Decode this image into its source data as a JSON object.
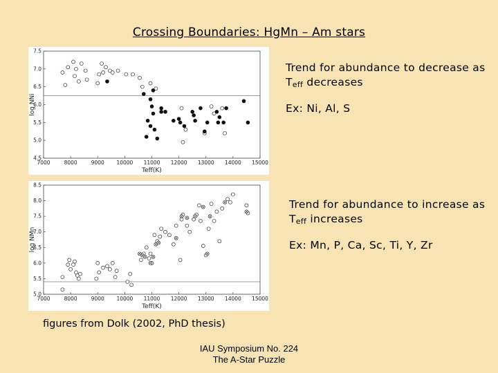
{
  "slide": {
    "title": "Crossing Boundaries:  HgMn – Am stars",
    "notes": [
      {
        "pre": "Trend for abundance to decrease as T",
        "sub": "eff",
        "post": " decreases",
        "example": "Ex: Ni, Al, S"
      },
      {
        "pre": "Trend for abundance to increase as T",
        "sub": "eff",
        "post": " increases",
        "example": "Ex: Mn, P, Ca, Sc, Ti, Y, Zr"
      }
    ],
    "caption": "figures from Dolk (2002, PhD thesis)",
    "footer_line1": "IAU Symposium No. 224",
    "footer_line2": "The A-Star Puzzle"
  },
  "chart_data": [
    {
      "type": "scatter",
      "xlabel": "Teff(K)",
      "ylabel": "log NNi",
      "xlim": [
        7000,
        15000
      ],
      "ylim": [
        4.5,
        7.5
      ],
      "xticks": [
        "7000",
        "8000",
        "9000",
        "10000",
        "11000",
        "12000",
        "13000",
        "14000",
        "15000"
      ],
      "yticks": [
        "4.5",
        "5.0",
        "5.5",
        "6.0",
        "6.5",
        "7.0",
        "7.5"
      ],
      "reference_line": 6.25,
      "series": [
        {
          "marker": "open",
          "points": [
            [
              7700,
              6.9
            ],
            [
              7800,
              6.55
            ],
            [
              7900,
              7.05
            ],
            [
              8100,
              7.2
            ],
            [
              8150,
              6.8
            ],
            [
              8200,
              7.0
            ],
            [
              8300,
              6.65
            ],
            [
              8400,
              7.15
            ],
            [
              8550,
              6.95
            ],
            [
              8600,
              6.7
            ],
            [
              9000,
              6.6
            ],
            [
              9050,
              6.85
            ],
            [
              9150,
              7.15
            ],
            [
              9200,
              6.9
            ],
            [
              9300,
              7.05
            ],
            [
              9450,
              6.95
            ],
            [
              9550,
              6.9
            ],
            [
              9750,
              6.95
            ],
            [
              10050,
              6.85
            ],
            [
              10300,
              6.85
            ],
            [
              10550,
              6.75
            ],
            [
              10650,
              6.5
            ],
            [
              10950,
              6.6
            ],
            [
              11150,
              6.45
            ],
            [
              12100,
              5.9
            ],
            [
              12250,
              5.3
            ],
            [
              12150,
              4.95
            ],
            [
              12950,
              5.2
            ],
            [
              13200,
              5.95
            ],
            [
              13300,
              5.75
            ],
            [
              13600,
              5.9
            ],
            [
              13700,
              5.2
            ]
          ]
        },
        {
          "marker": "filled",
          "points": [
            [
              9350,
              6.65
            ],
            [
              10700,
              6.3
            ],
            [
              11050,
              6.4
            ],
            [
              10950,
              6.15
            ],
            [
              11000,
              5.95
            ],
            [
              11050,
              5.75
            ],
            [
              11100,
              5.3
            ],
            [
              10850,
              5.55
            ],
            [
              10950,
              5.4
            ],
            [
              10800,
              5.1
            ],
            [
              11200,
              5.05
            ],
            [
              11350,
              5.8
            ],
            [
              11350,
              5.9
            ],
            [
              11500,
              5.8
            ],
            [
              11800,
              5.55
            ],
            [
              12000,
              5.6
            ],
            [
              12050,
              5.5
            ],
            [
              12200,
              5.4
            ],
            [
              12500,
              5.8
            ],
            [
              12550,
              5.7
            ],
            [
              12600,
              5.55
            ],
            [
              12800,
              5.9
            ],
            [
              12950,
              5.25
            ],
            [
              13050,
              5.5
            ],
            [
              13400,
              5.8
            ],
            [
              13450,
              5.5
            ],
            [
              13500,
              5.65
            ],
            [
              13650,
              5.5
            ],
            [
              13750,
              5.9
            ],
            [
              14400,
              6.1
            ],
            [
              14550,
              5.5
            ]
          ]
        }
      ]
    },
    {
      "type": "scatter",
      "xlabel": "Teff(K)",
      "ylabel": "log NMn",
      "xlim": [
        7000,
        15000
      ],
      "ylim": [
        5.0,
        8.5
      ],
      "xticks": [
        "7000",
        "8000",
        "9000",
        "10000",
        "11000",
        "12000",
        "13000",
        "14000",
        "15000"
      ],
      "yticks": [
        "5.0",
        "5.5",
        "6.0",
        "6.5",
        "7.0",
        "7.5",
        "8.0",
        "8.5"
      ],
      "reference_line": 5.4,
      "series": [
        {
          "marker": "open",
          "points": [
            [
              7700,
              5.15
            ],
            [
              7700,
              5.55
            ],
            [
              7900,
              5.95
            ],
            [
              7950,
              6.1
            ],
            [
              8000,
              5.8
            ],
            [
              8100,
              5.95
            ],
            [
              8150,
              6.05
            ],
            [
              8200,
              5.7
            ],
            [
              8250,
              5.6
            ],
            [
              8300,
              5.5
            ],
            [
              8350,
              5.65
            ],
            [
              8950,
              5.5
            ],
            [
              9000,
              6.0
            ],
            [
              9050,
              5.7
            ],
            [
              9200,
              5.85
            ],
            [
              9350,
              5.9
            ],
            [
              9450,
              5.8
            ],
            [
              9550,
              6.0
            ],
            [
              9650,
              5.55
            ],
            [
              9700,
              5.75
            ],
            [
              10100,
              5.4
            ],
            [
              10200,
              5.65
            ],
            [
              10250,
              5.3
            ],
            [
              10600,
              6.1
            ],
            [
              10700,
              6.3
            ],
            [
              10800,
              6.5
            ],
            [
              10900,
              6.15
            ],
            [
              10950,
              6.3
            ],
            [
              11000,
              6.0
            ],
            [
              11100,
              6.9
            ],
            [
              11200,
              6.7
            ],
            [
              11300,
              6.85
            ],
            [
              11350,
              7.1
            ],
            [
              11500,
              7.0
            ],
            [
              11650,
              6.9
            ],
            [
              11800,
              6.6
            ],
            [
              11900,
              7.2
            ],
            [
              12050,
              6.1
            ],
            [
              12100,
              7.4
            ],
            [
              12150,
              7.55
            ],
            [
              12300,
              7.2
            ],
            [
              12400,
              7.0
            ],
            [
              12550,
              7.4
            ],
            [
              12650,
              7.55
            ],
            [
              12750,
              7.85
            ],
            [
              12800,
              7.35
            ],
            [
              12900,
              6.55
            ],
            [
              13000,
              6.25
            ],
            [
              13100,
              7.1
            ],
            [
              13200,
              7.9
            ],
            [
              13300,
              7.35
            ],
            [
              13400,
              7.65
            ],
            [
              13500,
              6.7
            ],
            [
              13600,
              7.75
            ],
            [
              13800,
              8.05
            ],
            [
              13900,
              7.95
            ],
            [
              14000,
              8.2
            ],
            [
              14500,
              7.85
            ],
            [
              14550,
              7.6
            ]
          ]
        },
        {
          "marker": "crossed",
          "points": [
            [
              10550,
              6.3
            ],
            [
              10650,
              6.25
            ],
            [
              10750,
              6.2
            ],
            [
              10950,
              6.0
            ],
            [
              11050,
              6.2
            ],
            [
              11150,
              6.6
            ],
            [
              11250,
              6.65
            ],
            [
              11900,
              6.8
            ],
            [
              12100,
              7.5
            ],
            [
              12300,
              7.45
            ],
            [
              12600,
              7.5
            ],
            [
              12900,
              7.8
            ],
            [
              13050,
              6.3
            ],
            [
              13150,
              7.5
            ],
            [
              13700,
              7.95
            ],
            [
              14500,
              7.65
            ]
          ]
        }
      ]
    }
  ]
}
